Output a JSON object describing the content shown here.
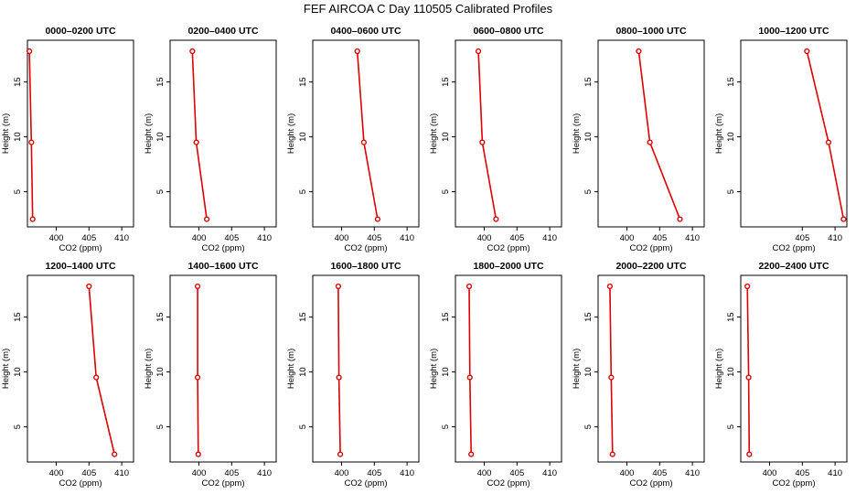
{
  "title": "FEF AIRCOA C  Day 110505  Calibrated Profiles",
  "colors": {
    "line": "#dd0000",
    "axis": "#000000"
  },
  "chart_data": [
    {
      "type": "line",
      "title": "0000–0200 UTC",
      "xlabel": "CO2 (ppm)",
      "ylabel": "Height (m)",
      "xlim": [
        395.6,
        411.8
      ],
      "ylim": [
        1.8,
        18.8
      ],
      "xticks": [
        "400",
        "405",
        "410"
      ],
      "xtick_values": [
        400,
        405,
        410
      ],
      "yticks": [
        "5",
        "10",
        "15"
      ],
      "ytick_values": [
        5,
        10,
        15
      ],
      "grid": false,
      "heights": [
        2.5,
        9.5,
        17.8
      ],
      "co2": [
        396.4,
        396.2,
        395.9
      ]
    },
    {
      "type": "line",
      "title": "0200–0400 UTC",
      "xlabel": "CO2 (ppm)",
      "ylabel": "Height (m)",
      "xlim": [
        395.6,
        411.8
      ],
      "ylim": [
        1.8,
        18.8
      ],
      "xticks": [
        "400",
        "405",
        "410"
      ],
      "xtick_values": [
        400,
        405,
        410
      ],
      "yticks": [
        "5",
        "10",
        "15"
      ],
      "ytick_values": [
        5,
        10,
        15
      ],
      "grid": false,
      "heights": [
        2.5,
        9.5,
        17.8
      ],
      "co2": [
        401.2,
        399.6,
        399.0
      ]
    },
    {
      "type": "line",
      "title": "0400–0600 UTC",
      "xlabel": "CO2 (ppm)",
      "ylabel": "Height (m)",
      "xlim": [
        395.6,
        411.8
      ],
      "ylim": [
        1.8,
        18.8
      ],
      "xticks": [
        "400",
        "405",
        "410"
      ],
      "xtick_values": [
        400,
        405,
        410
      ],
      "yticks": [
        "5",
        "10",
        "15"
      ],
      "ytick_values": [
        5,
        10,
        15
      ],
      "grid": false,
      "heights": [
        2.5,
        9.5,
        17.8
      ],
      "co2": [
        405.5,
        403.4,
        402.4
      ]
    },
    {
      "type": "line",
      "title": "0600–0800 UTC",
      "xlabel": "CO2 (ppm)",
      "ylabel": "Height (m)",
      "xlim": [
        395.6,
        411.8
      ],
      "ylim": [
        1.8,
        18.8
      ],
      "xticks": [
        "400",
        "405",
        "410"
      ],
      "xtick_values": [
        400,
        405,
        410
      ],
      "yticks": [
        "5",
        "10",
        "15"
      ],
      "ytick_values": [
        5,
        10,
        15
      ],
      "grid": false,
      "heights": [
        2.5,
        9.5,
        17.8
      ],
      "co2": [
        401.8,
        399.7,
        399.1
      ]
    },
    {
      "type": "line",
      "title": "0800–1000 UTC",
      "xlabel": "CO2 (ppm)",
      "ylabel": "Height (m)",
      "xlim": [
        395.6,
        411.8
      ],
      "ylim": [
        1.8,
        18.8
      ],
      "xticks": [
        "400",
        "405",
        "410"
      ],
      "xtick_values": [
        400,
        405,
        410
      ],
      "yticks": [
        "5",
        "10",
        "15"
      ],
      "ytick_values": [
        5,
        10,
        15
      ],
      "grid": false,
      "heights": [
        2.5,
        9.5,
        17.8
      ],
      "co2": [
        408.1,
        403.5,
        401.8
      ]
    },
    {
      "type": "line",
      "title": "1000–1200 UTC",
      "xlabel": "CO2 (ppm)",
      "ylabel": "Height (m)",
      "xlim": [
        395.6,
        411.8
      ],
      "ylim": [
        1.8,
        18.8
      ],
      "xticks": [
        "405",
        "410"
      ],
      "xtick_values": [
        405,
        410
      ],
      "yticks": [
        "5",
        "10",
        "15"
      ],
      "ytick_values": [
        5,
        10,
        15
      ],
      "grid": false,
      "heights": [
        2.5,
        9.5,
        17.8
      ],
      "co2": [
        411.3,
        409.0,
        405.7
      ]
    },
    {
      "type": "line",
      "title": "1200–1400 UTC",
      "xlabel": "CO2 (ppm)",
      "ylabel": "Height (m)",
      "xlim": [
        395.6,
        411.8
      ],
      "ylim": [
        1.8,
        18.8
      ],
      "xticks": [
        "400",
        "405",
        "410"
      ],
      "xtick_values": [
        400,
        405,
        410
      ],
      "yticks": [
        "5",
        "10",
        "15"
      ],
      "ytick_values": [
        5,
        10,
        15
      ],
      "grid": false,
      "heights": [
        2.5,
        9.5,
        17.8
      ],
      "co2": [
        408.9,
        406.1,
        405.0
      ]
    },
    {
      "type": "line",
      "title": "1400–1600 UTC",
      "xlabel": "CO2 (ppm)",
      "ylabel": "Height (m)",
      "xlim": [
        395.6,
        411.8
      ],
      "ylim": [
        1.8,
        18.8
      ],
      "xticks": [
        "400",
        "405",
        "410"
      ],
      "xtick_values": [
        400,
        405,
        410
      ],
      "yticks": [
        "5",
        "10",
        "15"
      ],
      "ytick_values": [
        5,
        10,
        15
      ],
      "grid": false,
      "heights": [
        2.5,
        9.5,
        17.8
      ],
      "co2": [
        399.9,
        399.8,
        399.8
      ]
    },
    {
      "type": "line",
      "title": "1600–1800 UTC",
      "xlabel": "CO2 (ppm)",
      "ylabel": "Height (m)",
      "xlim": [
        395.6,
        411.8
      ],
      "ylim": [
        1.8,
        18.8
      ],
      "xticks": [
        "400",
        "405",
        "410"
      ],
      "xtick_values": [
        400,
        405,
        410
      ],
      "yticks": [
        "5",
        "10",
        "15"
      ],
      "ytick_values": [
        5,
        10,
        15
      ],
      "grid": false,
      "heights": [
        2.5,
        9.5,
        17.8
      ],
      "co2": [
        399.8,
        399.6,
        399.5
      ]
    },
    {
      "type": "line",
      "title": "1800–2000 UTC",
      "xlabel": "CO2 (ppm)",
      "ylabel": "Height (m)",
      "xlim": [
        395.6,
        411.8
      ],
      "ylim": [
        1.8,
        18.8
      ],
      "xticks": [
        "400",
        "405",
        "410"
      ],
      "xtick_values": [
        400,
        405,
        410
      ],
      "yticks": [
        "5",
        "10",
        "15"
      ],
      "ytick_values": [
        5,
        10,
        15
      ],
      "grid": false,
      "heights": [
        2.5,
        9.5,
        17.8
      ],
      "co2": [
        398.0,
        397.8,
        397.7
      ]
    },
    {
      "type": "line",
      "title": "2000–2200 UTC",
      "xlabel": "CO2 (ppm)",
      "ylabel": "Height (m)",
      "xlim": [
        395.6,
        411.8
      ],
      "ylim": [
        1.8,
        18.8
      ],
      "xticks": [
        "400",
        "405",
        "410"
      ],
      "xtick_values": [
        400,
        405,
        410
      ],
      "yticks": [
        "5",
        "10",
        "15"
      ],
      "ytick_values": [
        5,
        10,
        15
      ],
      "grid": false,
      "heights": [
        2.5,
        9.5,
        17.8
      ],
      "co2": [
        397.8,
        397.6,
        397.4
      ]
    },
    {
      "type": "line",
      "title": "2200–2400 UTC",
      "xlabel": "CO2 (ppm)",
      "ylabel": "Height (m)",
      "xlim": [
        395.6,
        411.8
      ],
      "ylim": [
        1.8,
        18.8
      ],
      "xticks": [
        "400",
        "405",
        "410"
      ],
      "xtick_values": [
        400,
        405,
        410
      ],
      "yticks": [
        "5",
        "10",
        "15"
      ],
      "ytick_values": [
        5,
        10,
        15
      ],
      "grid": false,
      "heights": [
        2.5,
        9.5,
        17.8
      ],
      "co2": [
        396.9,
        396.8,
        396.6
      ]
    }
  ]
}
